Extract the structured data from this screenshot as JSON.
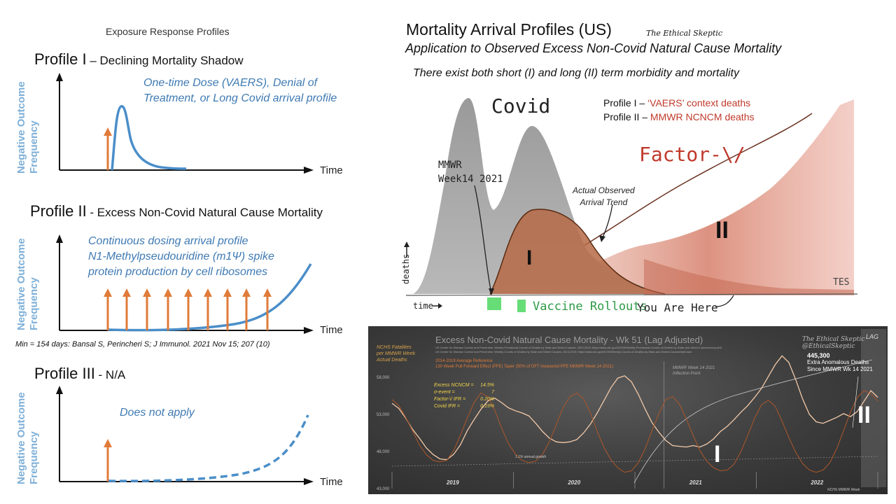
{
  "left": {
    "header": "Exposure Response Profiles",
    "time_label": "Time",
    "y_label_line1": "Negative Outcome",
    "y_label_line2": "Frequency",
    "profile1": {
      "title_main": "Profile I",
      "title_rest": " – Declining Mortality Shadow",
      "note_line1": "One-time Dose (VAERS), Denial of",
      "note_line2": "Treatment, or Long Covid arrival profile"
    },
    "profile2": {
      "title_main": "Profile II",
      "title_rest": " - Excess Non-Covid Natural Cause Mortality",
      "note_line1": "Continuous dosing arrival profile",
      "note_line2": "N1-Methylpseudouridine (m1Ψ) spike",
      "note_line3": "protein production by cell ribosomes",
      "citation": "Min = 154 days: Bansal S, Perincheri S; J Immunol. 2021 Nov 15; 207 (10)"
    },
    "profile3": {
      "title_main": "Profile III",
      "title_rest": " - N/A",
      "note": "Does not apply"
    }
  },
  "right": {
    "title": "Mortality Arrival Profiles (US)",
    "brand": "The Ethical Skeptic",
    "subtitle": "Application to Observed Excess Non-Covid Natural Cause Mortality",
    "subtitle2": "There exist both short (I) and long (II) term morbidity and mortality",
    "covid_label": "Covid",
    "legend1_prefix": "Profile I – ",
    "legend1_value": "‘VAERS’ context deaths",
    "legend2_prefix": "Profile II – ",
    "legend2_value": "MMWR NCNCM deaths",
    "factor_label": "Factor-\\/",
    "mmwr_line1": "MMWR",
    "mmwr_line2": "Week14 2021",
    "actual_line1": "Actual Observed",
    "actual_line2": "Arrival Trend",
    "roman1": "I",
    "roman2": "II",
    "deaths_label": "deaths",
    "time_label": "time",
    "tes": "TES",
    "vaccine": "Vaccine Rollouts",
    "you_are_here": "You Are Here",
    "colors": {
      "covid_gray": "#9a9a9a",
      "profile1_brown": "#b56a45",
      "profile2_red": "#c0392b",
      "vaccine_green": "#66dd77"
    }
  },
  "chart_data": {
    "type": "line",
    "title": "Excess Non-Covid Natural Cause Mortality - Wk 51 (Lag Adjusted)",
    "brand_line1": "The Ethical Skeptic",
    "brand_line2": "@EthicalSkeptic",
    "lag": "LAG",
    "ylabel_line1": "NCHS Fatalities",
    "ylabel_line2": "per MMWR Week",
    "ylabel_line3": "Actual Deaths",
    "source_line1": "US Center for Disease Control and Prevention: Weekly Provisional Counts of Deaths by State and Select Causes, 2020-2022; https://data.cdc.gov/NCHS/Weekly-Provisional-Counts-of-Deaths-by-State-and-Select-Causes/muzy-jte6",
    "source_line2": "US Center for Disease Control and Prevention: Weekly Counts of Deaths by State and Select Causes, 2014-2019; https://data.cdc.gov/NCHS/Weekly-Counts-of-Deaths-by-State-and-Select-Causes/3yf8-kanr",
    "legend_avg": "2014-2019 Average Reference",
    "legend_ppfe": "130 Week Pull Forward Effect (PFE) Taper (50% of DFT measured PFE MMWR Week 14 2021)",
    "stats": [
      {
        "label": "Excess NCNCM =",
        "value": "14.5%"
      },
      {
        "label": "σ-event =",
        "value": "7"
      },
      {
        "label": "Factor-\\/ IFR =",
        "value": "0.20%"
      },
      {
        "label": "Covid IFR =",
        "value": "0.19%"
      }
    ],
    "inflection_line1": "MMWR Week 14 2021",
    "inflection_line2": "Inflection Point",
    "callout_value": "445,300",
    "callout_line1": "Extra Anomalous Deaths",
    "callout_line2": "Since MMWR Wk 14 2021",
    "growth_label": "1.1% annual growth",
    "roman1": "I",
    "roman2": "II",
    "x_footer": "NCHS MMWR Week",
    "yticks": [
      "58,000",
      "53,000",
      "48,000",
      "43,000"
    ],
    "ytick_values": [
      58000,
      53000,
      48000,
      43000
    ],
    "years": [
      "2019",
      "2020",
      "2021",
      "2022"
    ],
    "ylim": [
      43000,
      63000
    ],
    "series": [
      {
        "name": "Actual Deaths",
        "values": [
          54500,
          53800,
          52500,
          51000,
          49800,
          48500,
          47600,
          47000,
          46900,
          47600,
          48900,
          50800,
          52300,
          53700,
          54800,
          55200,
          54600,
          53900,
          53500,
          53200,
          52800,
          51800,
          50700,
          49800,
          49300,
          49200,
          49300,
          49600,
          50500,
          51700,
          53200,
          54900,
          56600,
          57900,
          58200,
          57400,
          55700,
          53700,
          51900,
          50600,
          49500,
          48800,
          48700,
          48600,
          48800,
          48600,
          49000,
          49700,
          50700,
          51400,
          52300,
          53300,
          54200,
          55300,
          56500,
          58100,
          59700,
          60900,
          60000,
          57700,
          55100,
          53000,
          52000,
          51800,
          52200,
          52600,
          53100,
          52700,
          53400,
          54800,
          56200,
          55300
        ]
      },
      {
        "name": "2014-2019 Average Reference",
        "values": [
          55000,
          54200,
          52600,
          50800,
          48900,
          47600,
          46800,
          46600,
          46800,
          48100,
          50200,
          52500,
          54600,
          55900,
          55400,
          53600,
          51200,
          49100,
          47700,
          46800,
          46500,
          46700,
          47600,
          49300,
          51600,
          53900,
          55400,
          55900,
          55100,
          53200,
          50700,
          48500,
          46900,
          45800,
          45200,
          45400,
          46500,
          48400,
          50800,
          53100,
          55000,
          55400,
          54400,
          52400,
          50200,
          48100,
          46700,
          45800,
          45400,
          45500,
          46300,
          48000,
          50200,
          52500,
          54300,
          54900,
          54100,
          52100,
          49900,
          47900,
          46400,
          45500,
          45200,
          45500,
          46500,
          48400,
          50800,
          53300,
          55300,
          56200,
          55800,
          54800
        ]
      }
    ]
  }
}
